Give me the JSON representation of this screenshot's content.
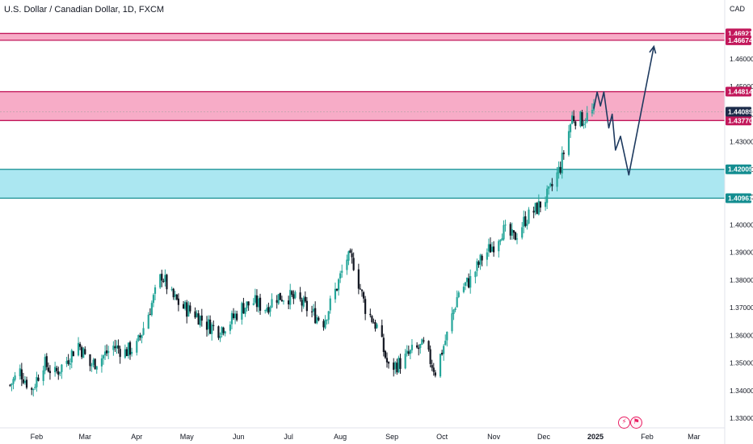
{
  "header": {
    "title": "U.S. Dollar / Canadian Dollar, 1D, FXCM",
    "currency": "CAD"
  },
  "icons": {
    "flash": "lightning-icon",
    "calendar": "flag-icon",
    "flash_color": "#e91e63",
    "calendar_color": "#e91e63"
  },
  "colors": {
    "up": "#26a69a",
    "down": "#131722",
    "resistance_zone_fill": "#f7a8c4",
    "resistance_zone_border": "#c2185b",
    "support_zone_fill": "#a7e6f0",
    "support_zone_border": "#138d90",
    "path_line": "#1e3a5f",
    "current_price_badge": "#1c2b4a"
  },
  "chart_data": {
    "type": "candlestick",
    "symbol": "USD/CAD",
    "interval": "1D",
    "source": "FXCM",
    "ylim": [
      1.3265,
      1.4743
    ],
    "y_ticks": [
      1.33,
      1.34,
      1.35,
      1.36,
      1.37,
      1.38,
      1.39,
      1.4,
      1.41,
      1.42,
      1.43,
      1.44,
      1.45,
      1.46
    ],
    "y_tick_labels": [
      "1.33000",
      "1.34000",
      "1.35000",
      "1.36000",
      "1.37000",
      "1.38000",
      "1.39000",
      "1.40000",
      "1.41000",
      "1.42000",
      "1.43000",
      "1.44000",
      "1.45000",
      "1.46000"
    ],
    "x_labels": [
      {
        "label": "Feb",
        "date": "2024-02-01"
      },
      {
        "label": "Mar",
        "date": "2024-03-01"
      },
      {
        "label": "Apr",
        "date": "2024-04-01"
      },
      {
        "label": "May",
        "date": "2024-05-01"
      },
      {
        "label": "Jun",
        "date": "2024-06-01"
      },
      {
        "label": "Jul",
        "date": "2024-07-01"
      },
      {
        "label": "Aug",
        "date": "2024-08-01"
      },
      {
        "label": "Sep",
        "date": "2024-09-01"
      },
      {
        "label": "Oct",
        "date": "2024-10-01"
      },
      {
        "label": "Nov",
        "date": "2024-11-01"
      },
      {
        "label": "Dec",
        "date": "2024-12-01"
      },
      {
        "label": "2025",
        "date": "2025-01-01",
        "bold": true
      },
      {
        "label": "Feb",
        "date": "2025-02-01"
      },
      {
        "label": "Mar",
        "date": "2025-03-01"
      }
    ],
    "close_path": [
      [
        "2024-01-16",
        1.342
      ],
      [
        "2024-01-22",
        1.347
      ],
      [
        "2024-01-29",
        1.34
      ],
      [
        "2024-02-05",
        1.35
      ],
      [
        "2024-02-12",
        1.346
      ],
      [
        "2024-02-19",
        1.351
      ],
      [
        "2024-02-26",
        1.357
      ],
      [
        "2024-03-04",
        1.349
      ],
      [
        "2024-03-11",
        1.352
      ],
      [
        "2024-03-18",
        1.356
      ],
      [
        "2024-03-25",
        1.354
      ],
      [
        "2024-04-01",
        1.356
      ],
      [
        "2024-04-08",
        1.368
      ],
      [
        "2024-04-16",
        1.382
      ],
      [
        "2024-04-22",
        1.374
      ],
      [
        "2024-04-29",
        1.37
      ],
      [
        "2024-05-06",
        1.368
      ],
      [
        "2024-05-13",
        1.364
      ],
      [
        "2024-05-20",
        1.362
      ],
      [
        "2024-05-27",
        1.365
      ],
      [
        "2024-06-03",
        1.37
      ],
      [
        "2024-06-10",
        1.372
      ],
      [
        "2024-06-17",
        1.37
      ],
      [
        "2024-06-24",
        1.374
      ],
      [
        "2024-07-01",
        1.374
      ],
      [
        "2024-07-08",
        1.372
      ],
      [
        "2024-07-15",
        1.368
      ],
      [
        "2024-07-22",
        1.365
      ],
      [
        "2024-07-29",
        1.376
      ],
      [
        "2024-08-05",
        1.388
      ],
      [
        "2024-08-09",
        1.386
      ],
      [
        "2024-08-16",
        1.37
      ],
      [
        "2024-08-23",
        1.363
      ],
      [
        "2024-08-30",
        1.348
      ],
      [
        "2024-09-06",
        1.35
      ],
      [
        "2024-09-13",
        1.354
      ],
      [
        "2024-09-20",
        1.356
      ],
      [
        "2024-09-27",
        1.347
      ],
      [
        "2024-10-04",
        1.36
      ],
      [
        "2024-10-11",
        1.376
      ],
      [
        "2024-10-18",
        1.38
      ],
      [
        "2024-10-25",
        1.388
      ],
      [
        "2024-11-01",
        1.393
      ],
      [
        "2024-11-06",
        1.398
      ],
      [
        "2024-11-13",
        1.395
      ],
      [
        "2024-11-20",
        1.402
      ],
      [
        "2024-11-27",
        1.406
      ],
      [
        "2024-12-04",
        1.411
      ],
      [
        "2024-12-11",
        1.421
      ],
      [
        "2024-12-18",
        1.439
      ],
      [
        "2024-12-24",
        1.438
      ],
      [
        "2024-12-31",
        1.441
      ]
    ],
    "last_price": 1.44089,
    "last_price_label": "1.44089",
    "zones": [
      {
        "type": "resistance",
        "top": 1.46921,
        "bottom": 1.46674,
        "top_label": "1.46921",
        "bottom_label": "1.46674"
      },
      {
        "type": "resistance",
        "top": 1.44814,
        "bottom": 1.4377,
        "top_label": "1.44814",
        "bottom_label": "1.43770"
      },
      {
        "type": "support",
        "top": 1.42005,
        "bottom": 1.40961,
        "top_label": "1.42005",
        "bottom_label": "1.40961"
      }
    ],
    "projection": [
      [
        "2024-12-31",
        1.442
      ],
      [
        "2025-01-02",
        1.448
      ],
      [
        "2025-01-04",
        1.443
      ],
      [
        "2025-01-06",
        1.448
      ],
      [
        "2025-01-09",
        1.435
      ],
      [
        "2025-01-11",
        1.44
      ],
      [
        "2025-01-13",
        1.427
      ],
      [
        "2025-01-16",
        1.432
      ],
      [
        "2025-01-21",
        1.418
      ],
      [
        "2025-02-05",
        1.4645
      ]
    ]
  }
}
